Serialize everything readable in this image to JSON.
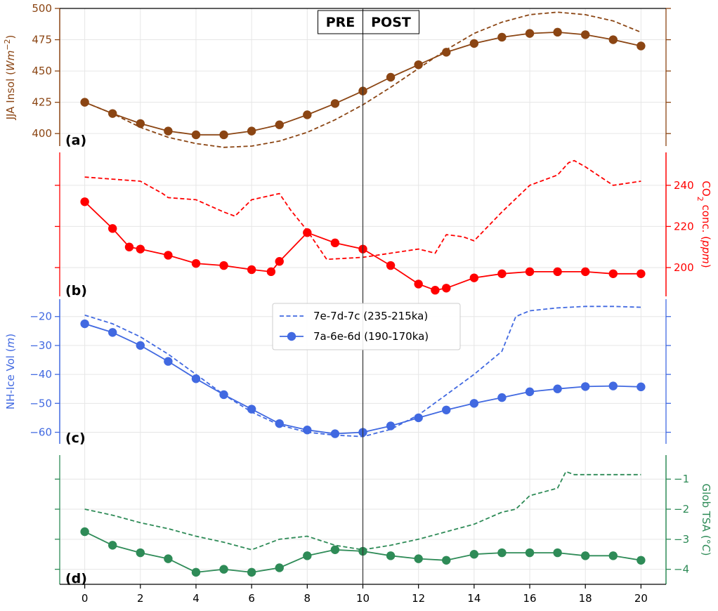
{
  "chart_data": {
    "type": "line",
    "shared_x": {
      "ticks": [
        0,
        2,
        4,
        6,
        8,
        10,
        12,
        14,
        16,
        18,
        20
      ],
      "xlim": [
        -0.9,
        20.9
      ]
    },
    "markers": {
      "pre": "PRE",
      "post": "POST",
      "split_x": 10
    },
    "legend": {
      "placement": "upper-center of panel (c)",
      "entries": [
        {
          "label": "7e-7d-7c (235-215ka)",
          "style": "dashed"
        },
        {
          "label": "7a-6e-6d (190-170ka)",
          "style": "solid-with-markers"
        }
      ]
    },
    "panels": [
      {
        "id": "a",
        "label": "(a)",
        "axis_side": "left",
        "ylabel_parts": [
          "JJA Insol (",
          "Wm",
          "−2",
          ")"
        ],
        "color": "#8B4513",
        "ylim": [
          390,
          500
        ],
        "yticks": [
          400,
          425,
          450,
          475,
          500
        ],
        "series": [
          {
            "style": "solid",
            "x": [
              0,
              1,
              2,
              3,
              4,
              5,
              6,
              7,
              8,
              9,
              10,
              11,
              12,
              13,
              14,
              15,
              16,
              17,
              18,
              19,
              20
            ],
            "values": [
              425,
              416,
              408,
              402,
              399,
              399,
              402,
              407,
              415,
              424,
              434,
              445,
              455,
              465,
              472,
              477,
              480,
              481,
              479,
              475,
              470
            ]
          },
          {
            "style": "dashed",
            "x": [
              0,
              1,
              2,
              3,
              4,
              5,
              6,
              7,
              8,
              9,
              10,
              11,
              12,
              13,
              14,
              15,
              16,
              17,
              18,
              19,
              20
            ],
            "values": [
              425,
              416,
              405,
              397,
              392,
              389,
              390,
              394,
              401,
              411,
              423,
              437,
              452,
              467,
              480,
              489,
              495,
              497,
              495,
              490,
              481
            ]
          }
        ]
      },
      {
        "id": "b",
        "label": "(b)",
        "axis_side": "right",
        "ylabel_parts": [
          "CO",
          "2",
          " conc. (",
          "ppm",
          ")"
        ],
        "color": "#FF0000",
        "ylim": [
          186,
          256
        ],
        "yticks": [
          200,
          220,
          240
        ],
        "series": [
          {
            "style": "solid",
            "x": [
              0,
              1,
              1.6,
              2,
              3,
              4,
              5,
              6,
              6.7,
              7,
              8,
              9,
              10,
              11,
              12,
              12.6,
              13,
              14,
              15,
              16,
              17,
              18,
              19,
              20
            ],
            "values": [
              232,
              219,
              210,
              209,
              206,
              202,
              201,
              199,
              198,
              203,
              217,
              212,
              209,
              201,
              192,
              189,
              190,
              195,
              197,
              198,
              198,
              198,
              197,
              197
            ]
          },
          {
            "style": "dashed",
            "x": [
              0,
              1,
              2,
              2.8,
              3,
              4,
              5,
              5.4,
              6,
              7,
              7.4,
              8,
              8.7,
              10,
              11,
              12,
              12.6,
              13,
              13.6,
              14,
              15,
              16,
              17,
              17.4,
              17.6,
              18,
              19,
              20
            ],
            "values": [
              244,
              243,
              242,
              236,
              234,
              233,
              227,
              225,
              233,
              236,
              228,
              218,
              204,
              205,
              207,
              209,
              207,
              216,
              215,
              213,
              227,
              240,
              245,
              251,
              252,
              249,
              240,
              242
            ]
          }
        ]
      },
      {
        "id": "c",
        "label": "(c)",
        "axis_side": "left",
        "ylabel_parts": [
          "NH-Ice Vol (",
          "m",
          ")"
        ],
        "color": "#4169E1",
        "ylim": [
          -64,
          -14
        ],
        "yticks": [
          -60,
          -50,
          -40,
          -30,
          -20
        ],
        "series": [
          {
            "style": "solid",
            "x": [
              0,
              1,
              2,
              3,
              4,
              5,
              6,
              7,
              8,
              9,
              10,
              11,
              12,
              13,
              14,
              15,
              16,
              17,
              18,
              19,
              20
            ],
            "values": [
              -22.5,
              -25.5,
              -30,
              -35.5,
              -41.5,
              -47,
              -52,
              -57,
              -59.2,
              -60.5,
              -60,
              -57.8,
              -55,
              -52.3,
              -50,
              -48,
              -46,
              -45,
              -44.2,
              -44,
              -44.3
            ]
          },
          {
            "style": "dashed",
            "x": [
              0,
              1,
              2,
              3,
              4,
              5,
              6,
              7,
              8,
              9,
              10,
              11,
              12,
              13,
              14,
              15,
              15.5,
              16,
              17,
              18,
              19,
              20
            ],
            "values": [
              -19.5,
              -22.5,
              -27,
              -33,
              -40,
              -47,
              -53,
              -57.5,
              -60,
              -61,
              -61.5,
              -59,
              -54,
              -47,
              -40,
              -32,
              -20,
              -18,
              -17,
              -16.5,
              -16.5,
              -16.8
            ]
          }
        ]
      },
      {
        "id": "d",
        "label": "(d)",
        "axis_side": "right",
        "ylabel_parts": [
          "Glob TSA (",
          "°C",
          ")"
        ],
        "color": "#2E8B57",
        "ylim": [
          -4.5,
          -0.2
        ],
        "yticks": [
          -4,
          -3,
          -2,
          -1
        ],
        "series": [
          {
            "style": "solid",
            "x": [
              0,
              1,
              2,
              3,
              4,
              5,
              6,
              7,
              8,
              9,
              10,
              11,
              12,
              13,
              14,
              15,
              16,
              17,
              18,
              19,
              20
            ],
            "values": [
              -2.75,
              -3.2,
              -3.45,
              -3.65,
              -4.1,
              -4.0,
              -4.1,
              -3.95,
              -3.55,
              -3.35,
              -3.4,
              -3.55,
              -3.65,
              -3.7,
              -3.5,
              -3.45,
              -3.45,
              -3.45,
              -3.55,
              -3.55,
              -3.7
            ]
          },
          {
            "style": "dashed",
            "x": [
              0,
              1,
              2,
              3,
              4,
              5,
              6,
              7,
              8,
              9,
              10,
              11,
              12,
              13,
              14,
              15,
              15.5,
              16,
              17,
              17.3,
              17.6,
              18,
              19,
              20
            ],
            "values": [
              -2.0,
              -2.2,
              -2.45,
              -2.65,
              -2.9,
              -3.1,
              -3.35,
              -3.0,
              -2.9,
              -3.2,
              -3.35,
              -3.2,
              -3.0,
              -2.75,
              -2.5,
              -2.1,
              -2.0,
              -1.55,
              -1.3,
              -0.75,
              -0.85,
              -0.85,
              -0.85,
              -0.85
            ]
          }
        ]
      }
    ]
  }
}
